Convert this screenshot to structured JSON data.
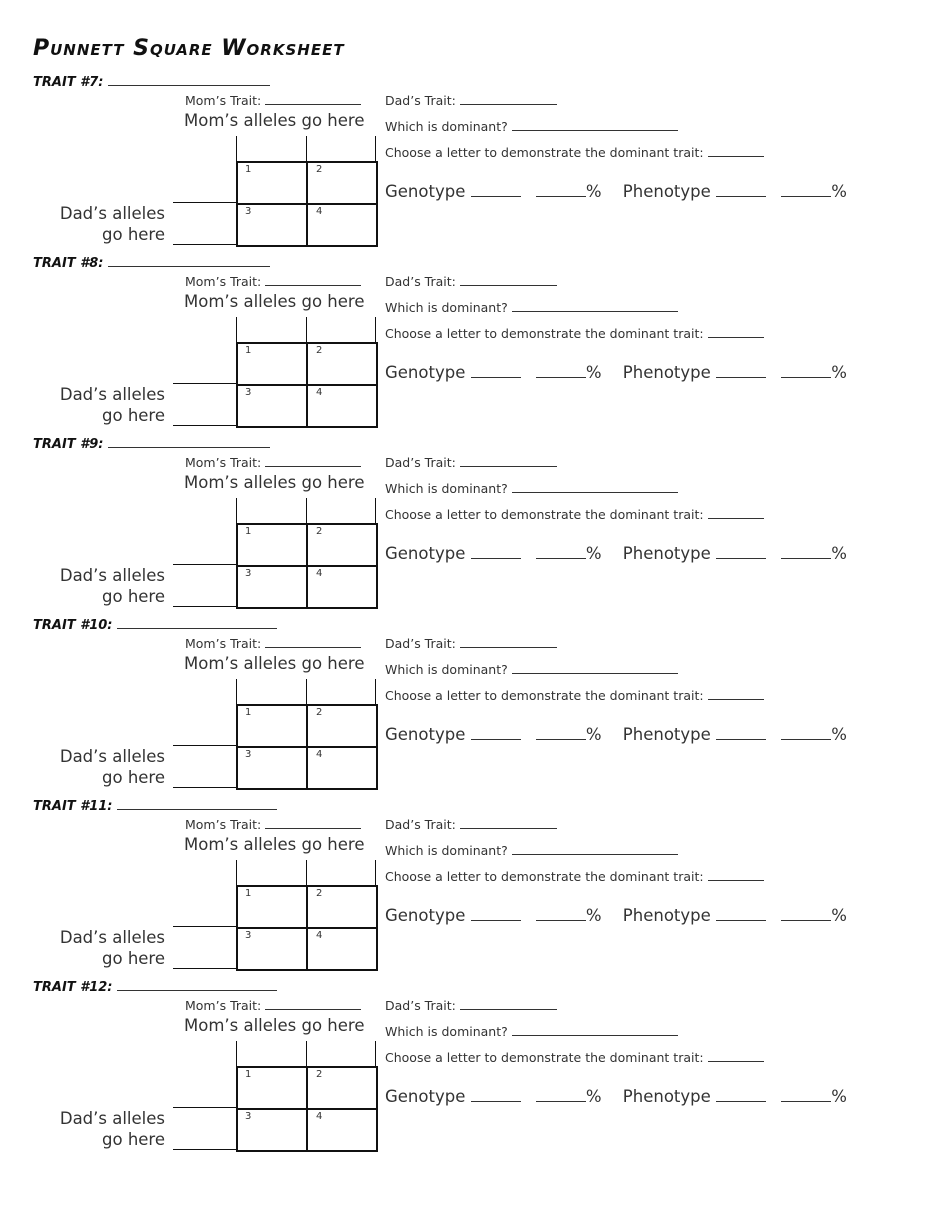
{
  "title": "Punnett Square Worksheet",
  "labels": {
    "moms_trait": "Mom’s Trait:",
    "moms_alleles": "Mom’s alleles go here",
    "dads_trait": "Dad’s Trait:",
    "which_dominant": "Which is dominant?",
    "choose_letter": "Choose a letter to demonstrate the dominant trait:",
    "genotype": "Genotype",
    "phenotype": "Phenotype",
    "percent": "%",
    "dads_alleles_1": "Dad’s alleles",
    "dads_alleles_2": "go here",
    "cells": [
      "1",
      "2",
      "3",
      "4"
    ]
  },
  "traits": [
    {
      "label": "TRAIT #7:"
    },
    {
      "label": "TRAIT #8:"
    },
    {
      "label": "TRAIT #9:"
    },
    {
      "label": "TRAIT #10:"
    },
    {
      "label": "TRAIT #11:"
    },
    {
      "label": "TRAIT #12:"
    }
  ]
}
